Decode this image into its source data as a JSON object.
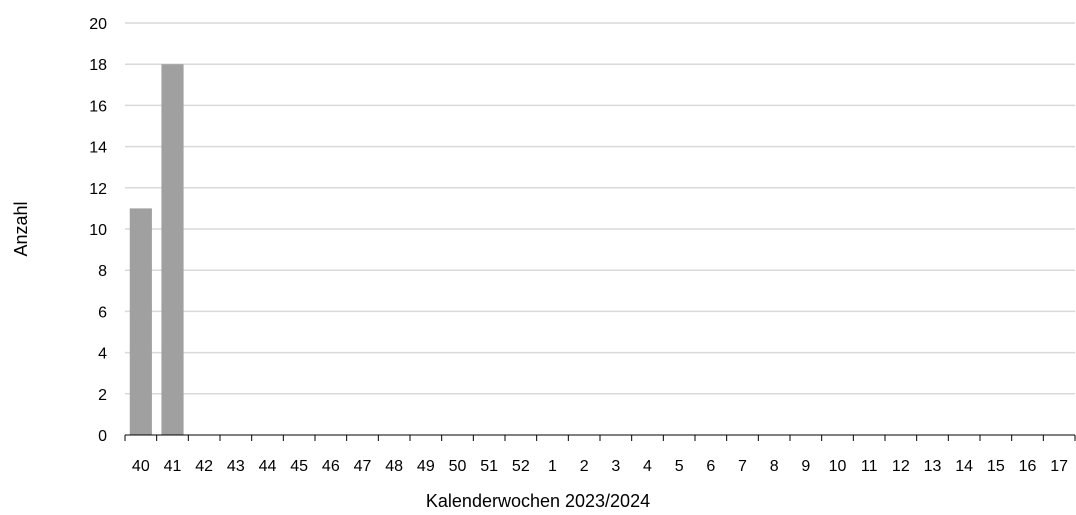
{
  "chart_data": {
    "type": "bar",
    "xlabel": "Kalenderwochen 2023/2024",
    "ylabel": "Anzahl",
    "ylim": [
      0,
      20
    ],
    "yticks": [
      0,
      2,
      4,
      6,
      8,
      10,
      12,
      14,
      16,
      18,
      20
    ],
    "grid": true,
    "categories": [
      "40",
      "41",
      "42",
      "43",
      "44",
      "45",
      "46",
      "47",
      "48",
      "49",
      "50",
      "51",
      "52",
      "1",
      "2",
      "3",
      "4",
      "5",
      "6",
      "7",
      "8",
      "9",
      "10",
      "11",
      "12",
      "13",
      "14",
      "15",
      "16",
      "17"
    ],
    "values": [
      11,
      18,
      null,
      null,
      null,
      null,
      null,
      null,
      null,
      null,
      null,
      null,
      null,
      null,
      null,
      null,
      null,
      null,
      null,
      null,
      null,
      null,
      null,
      null,
      null,
      null,
      null,
      null,
      null,
      null
    ],
    "bar_color": "#a0a0a0",
    "grid_color": "#d9d9d9"
  }
}
